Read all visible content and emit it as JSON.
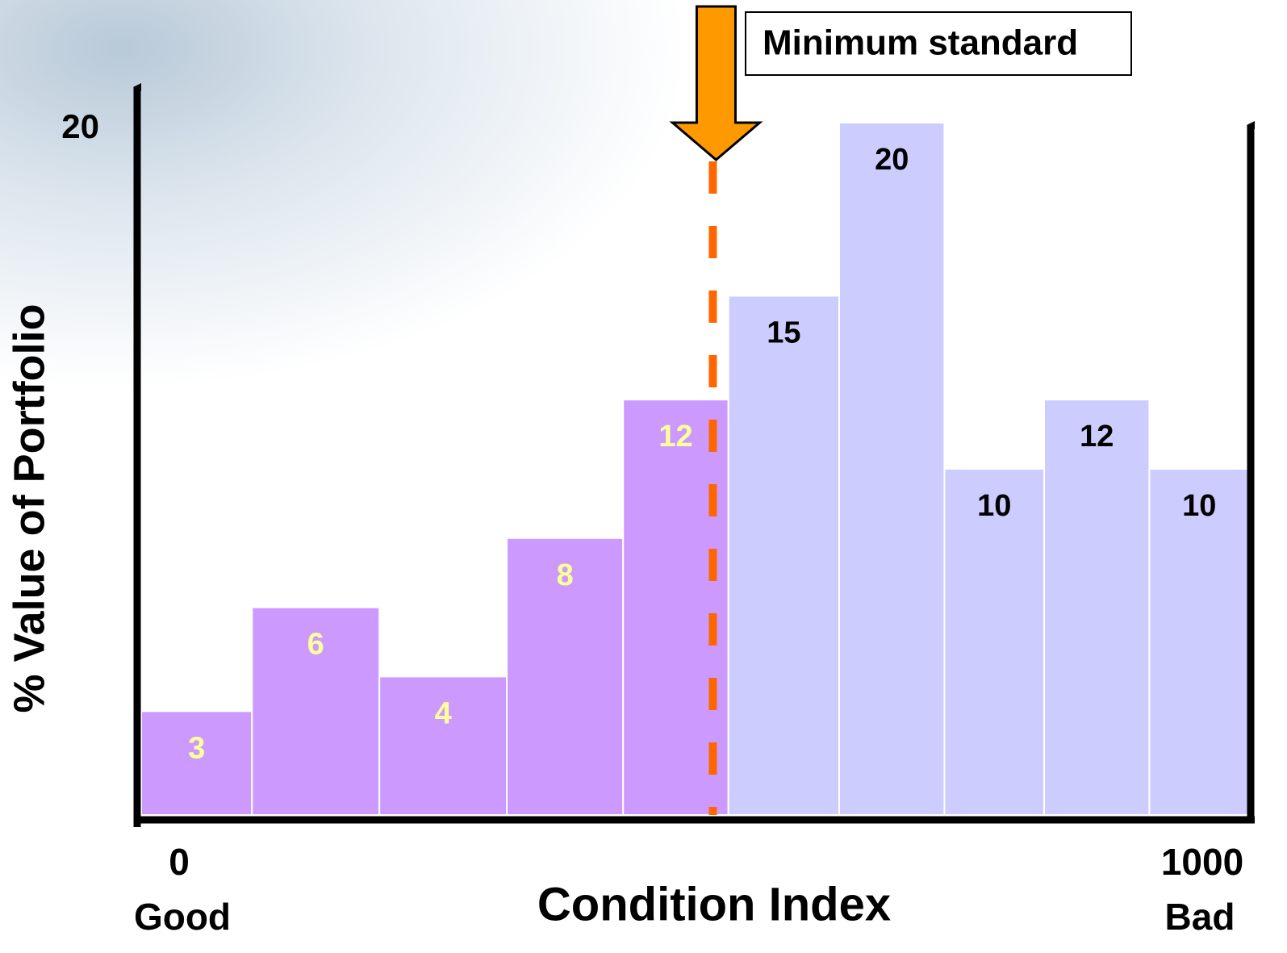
{
  "chart_data": {
    "type": "histogram",
    "bins": [
      0,
      100,
      215,
      330,
      435,
      530,
      630,
      725,
      815,
      910,
      1000
    ],
    "values": [
      3,
      6,
      4,
      8,
      12,
      15,
      20,
      10,
      12,
      10
    ],
    "colors": [
      "#cc99ff",
      "#cc99ff",
      "#cc99ff",
      "#cc99ff",
      "#cc99ff",
      "#ccccff",
      "#ccccff",
      "#ccccff",
      "#ccccff",
      "#ccccff"
    ],
    "label_colors": [
      "#ffff99",
      "#ffff99",
      "#ffff99",
      "#ffff99",
      "#ffff99",
      "#000000",
      "#000000",
      "#000000",
      "#000000",
      "#000000"
    ],
    "xlim": [
      0,
      1000
    ],
    "xticks": [
      0,
      1000
    ],
    "ylim": [
      0,
      20
    ],
    "yticks": [
      20
    ],
    "xlabel": "Condition Index",
    "ylabel": "% Value of Portfolio",
    "x_start_label": "Good",
    "x_end_label": "Bad",
    "threshold": {
      "x": 516,
      "label": "Minimum standard",
      "color": "#ff6600"
    }
  }
}
